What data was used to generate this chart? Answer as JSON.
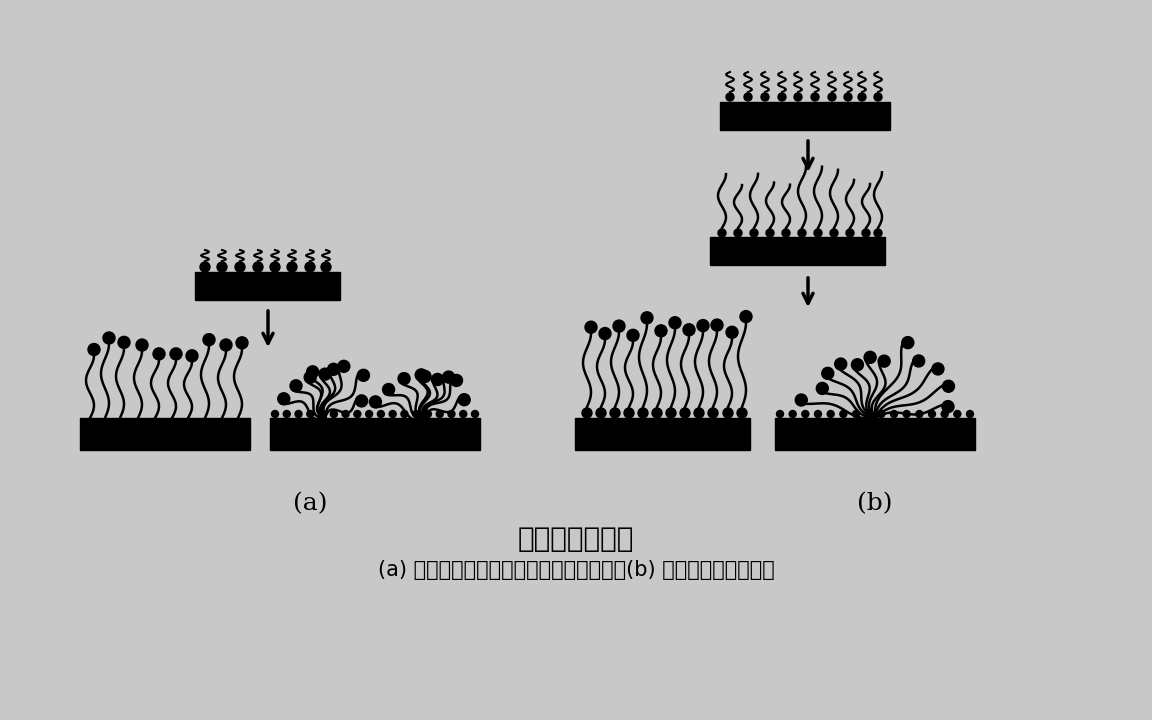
{
  "bg_color": "#c8c8c8",
  "black": "#000000",
  "white": "#ffffff",
  "title": "表面活性剂吸附",
  "subtitle": "(a) 非离子表面活性剂碳氢链与表面接触；(b) 极性头端与表面接触",
  "label_a": "(a)",
  "label_b": "(b)",
  "title_fontsize": 20,
  "subtitle_fontsize": 15,
  "label_fontsize": 18
}
